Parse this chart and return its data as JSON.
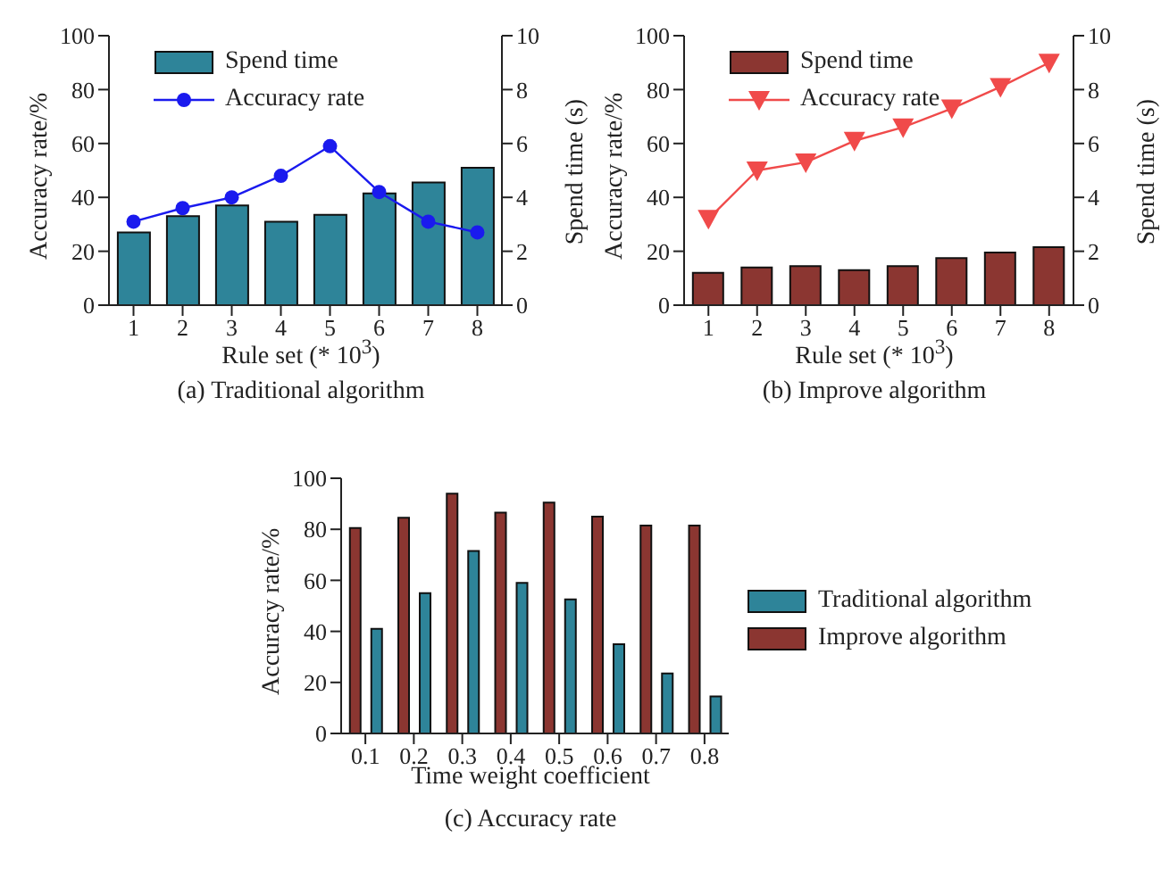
{
  "chart_data": [
    {
      "type": "bar",
      "xlabel": "Rule set (* 10$^{3}$)",
      "ylabel": "Accuracy rate/%",
      "y2label": "Spend time (s)",
      "subtitle": "(a) Traditional algorithm",
      "categories": [
        "1",
        "2",
        "3",
        "4",
        "5",
        "6",
        "7",
        "8"
      ],
      "ylim": [
        0,
        100
      ],
      "yticks": [
        0,
        20,
        40,
        60,
        80,
        100
      ],
      "y2lim": [
        0,
        10
      ],
      "y2ticks": [
        0,
        2,
        4,
        6,
        8,
        10
      ],
      "legend": "top left",
      "grid": false,
      "series": [
        {
          "name": "Spend time",
          "axis": "y2",
          "color": "#2e8499",
          "values": [
            2.7,
            3.3,
            3.7,
            3.1,
            3.35,
            4.15,
            4.55,
            5.1
          ]
        },
        {
          "name": "Accuracy rate",
          "type": "line",
          "color": "#1a1aee",
          "marker": "circle",
          "values": [
            31,
            36,
            40,
            48,
            59,
            42,
            31,
            27
          ]
        }
      ]
    },
    {
      "type": "bar",
      "xlabel": "Rule set (* 10$^{3}$)",
      "ylabel": "Accuracy rate/%",
      "y2label": "Spend time (s)",
      "subtitle": "(b) Improve algorithm",
      "categories": [
        "1",
        "2",
        "3",
        "4",
        "5",
        "6",
        "7",
        "8"
      ],
      "ylim": [
        0,
        100
      ],
      "yticks": [
        0,
        20,
        40,
        60,
        80,
        100
      ],
      "y2lim": [
        0,
        10
      ],
      "y2ticks": [
        0,
        2,
        4,
        6,
        8,
        10
      ],
      "legend": "top left",
      "grid": false,
      "series": [
        {
          "name": "Spend time",
          "axis": "y2",
          "color": "#8b3631",
          "values": [
            1.2,
            1.4,
            1.45,
            1.3,
            1.45,
            1.75,
            1.95,
            2.15
          ]
        },
        {
          "name": "Accuracy rate",
          "type": "line",
          "color": "#f04a4a",
          "marker": "triangle",
          "values": [
            32,
            50,
            53,
            61,
            66,
            73,
            81,
            90
          ]
        }
      ]
    },
    {
      "type": "bar",
      "xlabel": "Time weight coefficient",
      "ylabel": "Accuracy rate/%",
      "subtitle": "(c) Accuracy rate",
      "categories": [
        "0.1",
        "0.2",
        "0.3",
        "0.4",
        "0.5",
        "0.6",
        "0.7",
        "0.8"
      ],
      "ylim": [
        0,
        100
      ],
      "yticks": [
        0,
        20,
        40,
        60,
        80,
        100
      ],
      "legend": "right",
      "grid": false,
      "series": [
        {
          "name": "Improve algorithm",
          "color": "#8b3631",
          "values": [
            80.5,
            84.5,
            94,
            86.5,
            90.5,
            85,
            81.5,
            81.5
          ]
        },
        {
          "name": "Traditional algorithm",
          "color": "#2e8499",
          "values": [
            41,
            55,
            71.5,
            59,
            52.5,
            35,
            23.5,
            14.5
          ]
        }
      ]
    }
  ]
}
